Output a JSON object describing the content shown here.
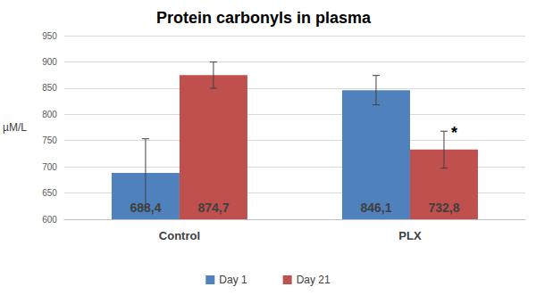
{
  "chart_data": {
    "type": "bar",
    "title": "Protein carbonyls in plasma",
    "y_label": "µM/L",
    "categories": [
      "Control",
      "PLX"
    ],
    "series": [
      {
        "name": "Day 1",
        "color": "#4f81bd",
        "values": [
          688.4,
          846.1
        ],
        "value_labels": [
          "688,4",
          "846,1"
        ],
        "errors": [
          65,
          28
        ]
      },
      {
        "name": "Day 21",
        "color": "#c0504d",
        "values": [
          874.7,
          732.8
        ],
        "value_labels": [
          "874,7",
          "732,8"
        ],
        "errors": [
          25,
          35
        ]
      }
    ],
    "annotations": [
      {
        "text": "*",
        "category": "PLX",
        "series": "Day 21"
      }
    ],
    "ylim": [
      600,
      950
    ],
    "yticks": [
      600,
      650,
      700,
      750,
      800,
      850,
      900,
      950
    ],
    "grid": true,
    "legend": "bottom",
    "data_labels": true
  }
}
